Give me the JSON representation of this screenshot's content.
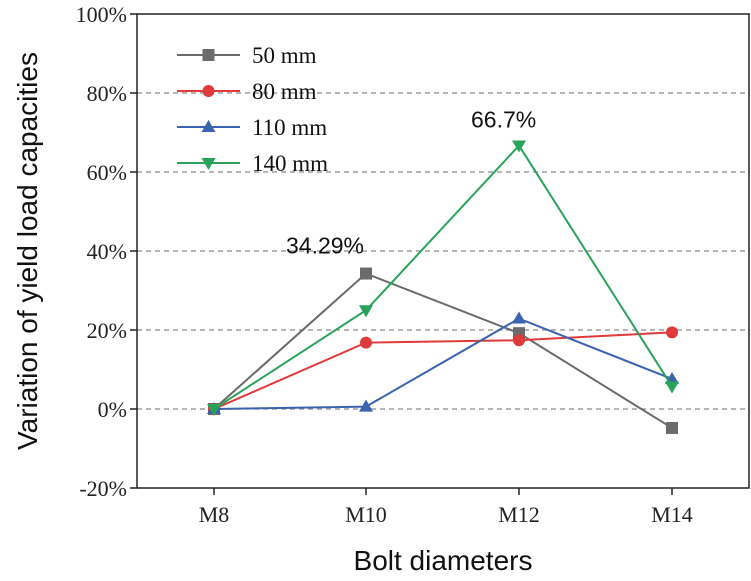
{
  "chart_data": {
    "type": "line",
    "title": "",
    "xlabel": "Bolt diameters",
    "ylabel": "Variation of yield load capacities",
    "categories": [
      "M8",
      "M10",
      "M12",
      "M14"
    ],
    "ylim": [
      -20,
      100
    ],
    "yticks": [
      -20,
      0,
      20,
      40,
      60,
      80,
      100
    ],
    "ytick_labels": [
      "-20%",
      "0%",
      "20%",
      "40%",
      "60%",
      "80%",
      "100%"
    ],
    "grid": "dashed horizontal",
    "legend_position": "top-left",
    "series": [
      {
        "name": "50 mm",
        "color": "#6b6b6b",
        "marker": "square",
        "values": [
          0,
          34.29,
          19.2,
          -4.8
        ]
      },
      {
        "name": "80 mm",
        "color": "#e03a3a",
        "marker": "circle",
        "values": [
          0,
          16.8,
          17.4,
          19.4
        ]
      },
      {
        "name": "110 mm",
        "color": "#3b63b0",
        "marker": "triangle-up",
        "values": [
          0,
          0.6,
          22.9,
          7.6
        ]
      },
      {
        "name": "140 mm",
        "color": "#2aa35a",
        "marker": "triangle-down",
        "values": [
          0,
          25.0,
          66.7,
          5.7
        ]
      }
    ],
    "annotations": [
      {
        "text": "34.29%",
        "category": "M10",
        "value": 34.29
      },
      {
        "text": "66.7%",
        "category": "M12",
        "value": 66.7
      }
    ]
  }
}
